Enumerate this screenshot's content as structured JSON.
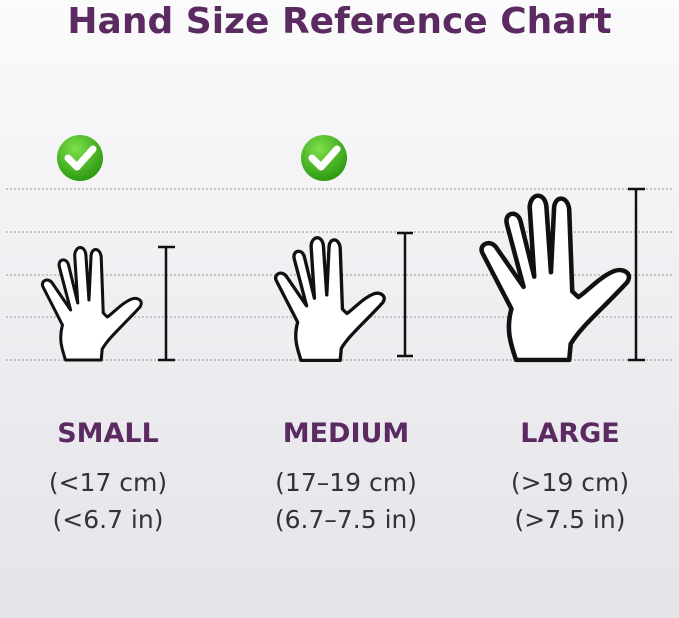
{
  "title": "Hand Size Reference Chart",
  "colors": {
    "title": "#5b2a61",
    "check": "#3fae1c"
  },
  "sizes": [
    {
      "label": "SMALL",
      "cm": "(<17 cm)",
      "in": "(<6.7 in)",
      "recommended": true
    },
    {
      "label": "MEDIUM",
      "cm": "(17–19 cm)",
      "in": "(6.7–7.5 in)",
      "recommended": true
    },
    {
      "label": "LARGE",
      "cm": "(>19 cm)",
      "in": "(>7.5 in)",
      "recommended": false
    }
  ],
  "icons": {
    "check": "check-circle-icon",
    "hand": "hand-outline-icon",
    "measure": "height-bracket-icon"
  }
}
